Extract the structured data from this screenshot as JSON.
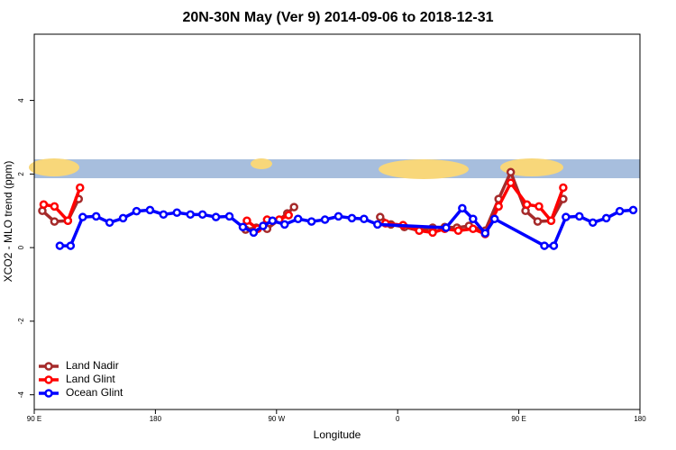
{
  "chart_data": {
    "type": "line",
    "title": "20N-30N May (Ver 9)   2014-09-06 to 2018-12-31",
    "x_label": "Longitude",
    "y_label": "XCO2 - MLO trend (ppm)",
    "xlim": [
      90,
      540
    ],
    "ylim": [
      -4.4,
      5.8
    ],
    "xticks": [
      {
        "value": 90,
        "label": "90 E"
      },
      180,
      {
        "value": 270,
        "label": "90 W"
      },
      {
        "value": 360,
        "label": "0"
      },
      {
        "value": 450,
        "label": "90 E"
      },
      {
        "value": 540,
        "label": "180"
      }
    ],
    "yticks": [
      -4,
      -2,
      0,
      2,
      4
    ],
    "legend": "bottom-left",
    "series": [
      {
        "name": "Land Nadir",
        "color": "#a52a2a",
        "x": [
          96,
          105,
          115,
          123,
          124,
          247,
          255,
          263,
          278,
          283,
          284,
          347,
          355,
          365,
          376,
          386,
          395,
          404,
          413,
          425,
          435,
          444,
          455,
          464,
          474,
          483
        ],
        "values": [
          1.0,
          0.71,
          0.73,
          1.32,
          null,
          0.49,
          0.54,
          0.51,
          0.93,
          1.1,
          null,
          0.83,
          0.63,
          0.56,
          0.46,
          0.54,
          0.56,
          0.54,
          0.59,
          0.46,
          1.32,
          2.05,
          1.0,
          0.71,
          0.73,
          1.32
        ]
      },
      {
        "name": "Land Glint",
        "color": "#ff0000",
        "x": [
          97,
          105,
          115,
          124,
          125,
          248,
          256,
          263,
          272,
          279,
          280,
          351,
          364,
          376,
          386,
          395,
          405,
          416,
          425,
          435,
          444,
          456,
          465,
          474,
          483
        ],
        "values": [
          1.17,
          1.12,
          0.73,
          1.63,
          null,
          0.73,
          0.51,
          0.76,
          0.76,
          0.88,
          null,
          0.66,
          0.61,
          0.46,
          0.41,
          0.51,
          0.46,
          0.51,
          0.37,
          1.12,
          1.76,
          1.17,
          1.12,
          0.73,
          1.63
        ]
      },
      {
        "name": "Ocean Glint",
        "color": "#0000ff",
        "x": [
          109,
          117,
          126,
          136,
          146,
          156,
          166,
          176,
          186,
          196,
          206,
          215,
          225,
          235,
          245,
          253,
          260,
          267,
          276,
          286,
          296,
          306,
          316,
          326,
          335,
          345,
          396,
          408,
          416,
          425,
          432,
          469,
          476,
          485,
          495,
          505,
          515,
          525,
          535
        ],
        "values": [
          0.05,
          0.05,
          0.83,
          0.85,
          0.68,
          0.8,
          0.99,
          1.02,
          0.9,
          0.95,
          0.9,
          0.9,
          0.83,
          0.85,
          0.56,
          0.41,
          0.59,
          0.73,
          0.63,
          0.78,
          0.71,
          0.76,
          0.85,
          0.8,
          0.78,
          0.63,
          0.54,
          1.07,
          0.78,
          0.39,
          0.78,
          0.05,
          0.05,
          0.83,
          0.85,
          0.68,
          0.8,
          0.99,
          1.02
        ]
      }
    ]
  }
}
